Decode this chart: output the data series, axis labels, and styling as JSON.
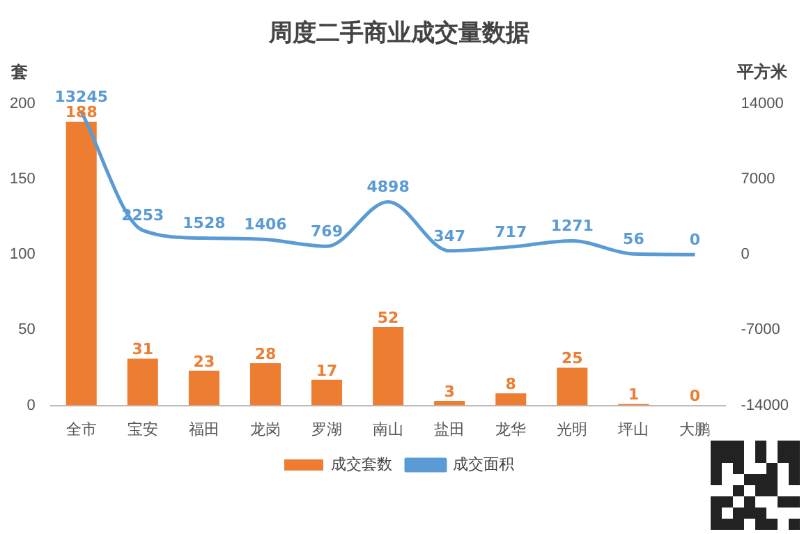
{
  "chart_data": {
    "type": "bar",
    "title": "周度二手商业成交量数据",
    "ylabel": "套",
    "y2label": "平方米",
    "categories": [
      "全市",
      "宝安",
      "福田",
      "龙岗",
      "罗湖",
      "南山",
      "盐田",
      "龙华",
      "光明",
      "坪山",
      "大鹏"
    ],
    "series": [
      {
        "name": "成交套数",
        "color": "#ed7d31",
        "values": [
          188,
          31,
          23,
          28,
          17,
          52,
          3,
          8,
          25,
          1,
          0
        ]
      },
      {
        "name": "成交面积",
        "type": "line",
        "axis": "y2",
        "color": "#5b9bd5",
        "values": [
          13245,
          2253,
          1528,
          1406,
          769,
          4898,
          347,
          717,
          1271,
          56,
          0
        ]
      }
    ],
    "ylim": [
      0,
      200
    ],
    "yticks": [
      0,
      50,
      100,
      150,
      200
    ],
    "y2lim": [
      -14000,
      14000
    ],
    "y2ticks": [
      -14000,
      -7000,
      0,
      7000,
      14000
    ],
    "data_labels": true,
    "legend": "bottom",
    "marker": "none"
  }
}
